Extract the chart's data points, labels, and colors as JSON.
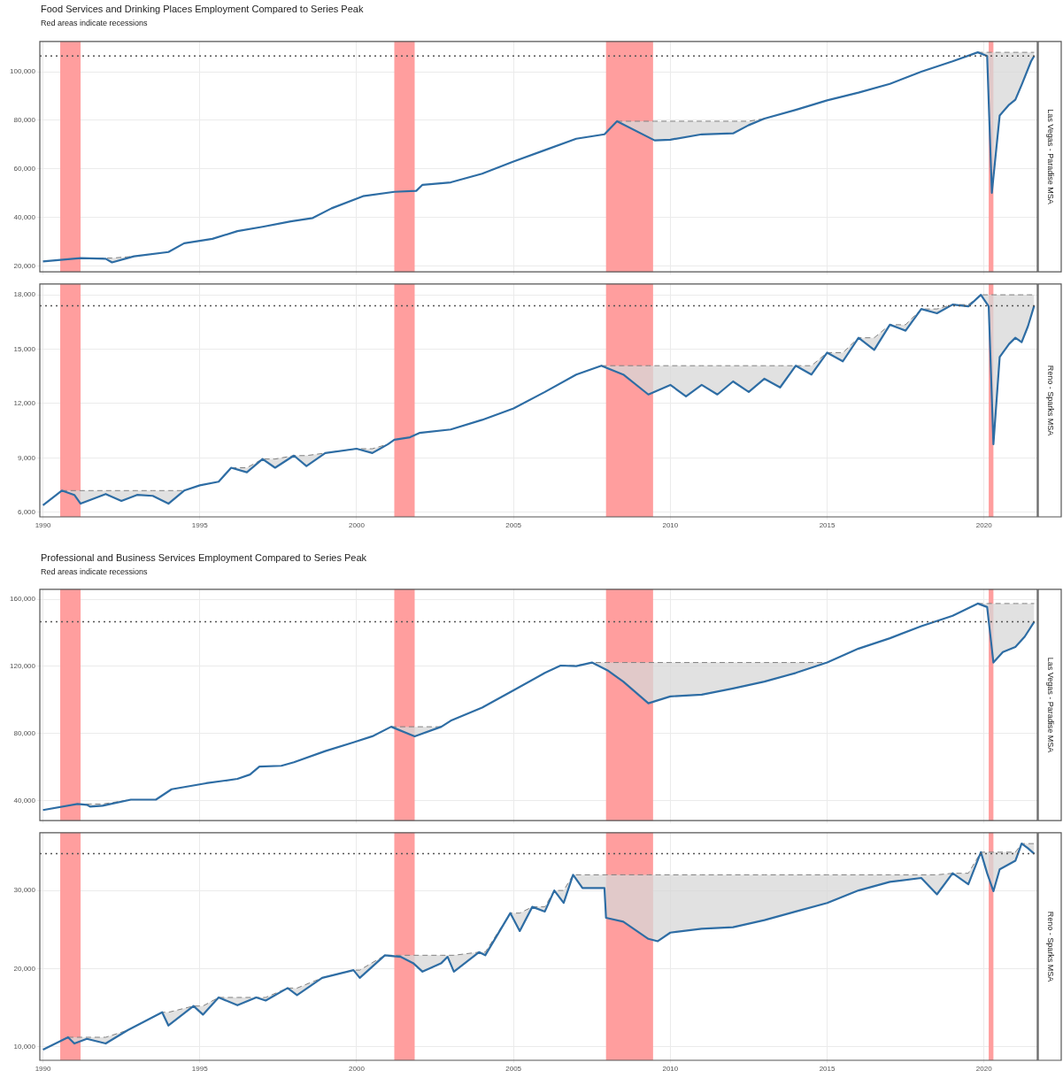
{
  "chart_data": [
    {
      "type": "line",
      "title": "Food Services and Drinking Places Employment Compared to Series Peak",
      "subtitle": "Red areas indicate recessions",
      "y2label": "Las Vegas - Paradise MSA",
      "xlim": [
        1989.9,
        2021.7
      ],
      "xticks": [
        1990,
        1995,
        2000,
        2005,
        2010,
        2015,
        2020
      ],
      "ylim": [
        17500,
        112500
      ],
      "yticks": [
        {
          "value": 20000,
          "label": "20,000"
        },
        {
          "value": 40000,
          "label": "40,000"
        },
        {
          "value": 60000,
          "label": "60,000"
        },
        {
          "value": 80000,
          "label": "80,000"
        },
        {
          "value": 100000,
          "label": "100,000"
        }
      ],
      "grid": true,
      "tick_labels": "y",
      "bands": [
        {
          "axis": "x",
          "from": 1990.55,
          "to": 1991.2,
          "color": "#ff9e9e"
        },
        {
          "axis": "x",
          "from": 2001.2,
          "to": 2001.85,
          "color": "#ff9e9e"
        },
        {
          "axis": "x",
          "from": 2007.95,
          "to": 2009.45,
          "color": "#ff9e9e"
        },
        {
          "axis": "x",
          "from": 2020.15,
          "to": 2020.3,
          "color": "#ff9e9e"
        }
      ],
      "ref_lines": [
        {
          "axis": "y",
          "value": 106500,
          "color": "#555555",
          "line_style": "dotted"
        }
      ],
      "series": [
        {
          "type": "line",
          "color": "#2e6da4",
          "x": [
            1990,
            1991.2,
            1992,
            1992.2,
            1992.9,
            1994,
            1994.5,
            1995.4,
            1996.2,
            1997,
            1997.9,
            1998.6,
            1999.2,
            2000.2,
            2001.2,
            2001.9,
            2002.1,
            2003,
            2004,
            2005,
            2006,
            2007,
            2007.9,
            2008.3,
            2009.5,
            2010,
            2011,
            2012,
            2012.5,
            2013,
            2014,
            2015,
            2016,
            2017,
            2018,
            2019,
            2019.8,
            2020.1,
            2020.25,
            2020.5,
            2020.8,
            2021,
            2021.2,
            2021.5,
            2021.6
          ],
          "values": [
            21800,
            23200,
            22900,
            21400,
            23900,
            25700,
            29300,
            31100,
            34300,
            36100,
            38300,
            39700,
            43700,
            48700,
            50500,
            50900,
            53400,
            54400,
            58000,
            63000,
            67700,
            72400,
            74200,
            79600,
            71700,
            72000,
            74200,
            74600,
            78000,
            80700,
            84300,
            88200,
            91400,
            95000,
            100000,
            104300,
            108000,
            106500,
            50100,
            82000,
            86400,
            88500,
            94600,
            104300,
            106500
          ],
          "lower": [
            null,
            23200,
            22900,
            21400,
            23900,
            null,
            null,
            null,
            null,
            null,
            null,
            null,
            null,
            null,
            null,
            null,
            null,
            null,
            null,
            null,
            null,
            null,
            null,
            79600,
            71700,
            72000,
            74200,
            74600,
            78000,
            80700,
            null,
            null,
            null,
            null,
            null,
            null,
            108000,
            106500,
            50100,
            82000,
            86400,
            88500,
            94600,
            104300,
            106500
          ],
          "upper": [
            null,
            23200,
            23200,
            23200,
            23900,
            null,
            null,
            null,
            null,
            null,
            null,
            null,
            null,
            null,
            null,
            null,
            null,
            null,
            null,
            null,
            null,
            null,
            null,
            79600,
            79600,
            79600,
            79600,
            79600,
            79600,
            80700,
            null,
            null,
            null,
            null,
            null,
            null,
            108000,
            108000,
            108000,
            108000,
            108000,
            108000,
            108000,
            108000,
            108000
          ]
        },
        {
          "type": "line",
          "color": "#808080",
          "line_style": "dashed",
          "x": [
            1991.2,
            1992,
            1992.2,
            1992.9,
            1994,
            2008.3,
            2009.5,
            2010,
            2011,
            2012,
            2012.5,
            2013,
            2014,
            2019.8,
            2020.1,
            2020.25,
            2020.5,
            2020.8,
            2021,
            2021.2,
            2021.5,
            2021.6
          ],
          "values": [
            23200,
            23200,
            23200,
            23900,
            null,
            79600,
            79600,
            79600,
            79600,
            79600,
            79600,
            80700,
            null,
            108000,
            108000,
            108000,
            108000,
            108000,
            108000,
            108000,
            108000,
            108000
          ]
        }
      ]
    },
    {
      "type": "line",
      "y2label": "Reno - Sparks MSA",
      "xlim": [
        1989.9,
        2021.7
      ],
      "xticks": [
        1990,
        1995,
        2000,
        2005,
        2010,
        2015,
        2020
      ],
      "ylim": [
        5750,
        18600
      ],
      "yticks": [
        {
          "value": 6000,
          "label": "6,000"
        },
        {
          "value": 9000,
          "label": "9,000"
        },
        {
          "value": 12000,
          "label": "12,000"
        },
        {
          "value": 15000,
          "label": "15,000"
        },
        {
          "value": 18000,
          "label": "18,000"
        }
      ],
      "grid": true,
      "bands": [
        {
          "axis": "x",
          "from": 1990.55,
          "to": 1991.2,
          "color": "#ff9e9e"
        },
        {
          "axis": "x",
          "from": 2001.2,
          "to": 2001.85,
          "color": "#ff9e9e"
        },
        {
          "axis": "x",
          "from": 2007.95,
          "to": 2009.45,
          "color": "#ff9e9e"
        },
        {
          "axis": "x",
          "from": 2020.15,
          "to": 2020.3,
          "color": "#ff9e9e"
        }
      ],
      "ref_lines": [
        {
          "axis": "y",
          "value": 17400,
          "color": "#555555",
          "line_style": "dotted"
        }
      ],
      "series": [
        {
          "type": "line",
          "color": "#2e6da4",
          "x": [
            1990,
            1990.6,
            1991,
            1991.2,
            1992,
            1992.5,
            1993,
            1993.5,
            1994,
            1994.5,
            1995,
            1995.6,
            1996,
            1996.5,
            1997,
            1997.4,
            1998,
            1998.4,
            1999,
            2000,
            2000.5,
            2001,
            2001.2,
            2001.7,
            2002,
            2003,
            2004,
            2005,
            2006,
            2007,
            2007.8,
            2008.5,
            2009.3,
            2010,
            2010.5,
            2011,
            2011.5,
            2012,
            2012.5,
            2013,
            2013.5,
            2014,
            2014.5,
            2015,
            2015.5,
            2016,
            2016.5,
            2017,
            2017.5,
            2018,
            2018.5,
            2019,
            2019.5,
            2019.9,
            2020.15,
            2020.3,
            2020.5,
            2020.8,
            2021,
            2021.2,
            2021.4,
            2021.6
          ],
          "values": [
            6390,
            7200,
            6960,
            6480,
            7010,
            6630,
            6960,
            6910,
            6480,
            7200,
            7490,
            7690,
            8460,
            8210,
            8940,
            8460,
            9130,
            8550,
            9270,
            9510,
            9270,
            9760,
            10000,
            10140,
            10380,
            10570,
            11100,
            11730,
            12640,
            13600,
            14090,
            13600,
            12500,
            13030,
            12400,
            13030,
            12500,
            13220,
            12640,
            13370,
            12890,
            14090,
            13600,
            14810,
            14330,
            15630,
            14960,
            16350,
            16020,
            17220,
            16980,
            17460,
            17360,
            18000,
            17360,
            9760,
            14570,
            15290,
            15630,
            15390,
            16260,
            17400
          ],
          "lower": [
            null,
            7200,
            6960,
            6480,
            7010,
            6630,
            6960,
            6910,
            6480,
            7200,
            null,
            null,
            8460,
            8210,
            8940,
            8460,
            9130,
            8550,
            9270,
            9510,
            9270,
            9760,
            null,
            null,
            null,
            null,
            null,
            null,
            null,
            null,
            14090,
            13600,
            12500,
            13030,
            12400,
            13030,
            12500,
            13220,
            12640,
            13370,
            12890,
            14090,
            13600,
            14810,
            14330,
            15630,
            14960,
            16350,
            16020,
            17220,
            16980,
            17460,
            17360,
            18000,
            17360,
            9760,
            14570,
            15290,
            15630,
            15390,
            16260,
            17400
          ],
          "upper": [
            null,
            7200,
            7200,
            7200,
            7200,
            7200,
            7200,
            7200,
            7200,
            7200,
            null,
            null,
            8460,
            8460,
            8940,
            8940,
            9130,
            9130,
            9270,
            9510,
            9510,
            9760,
            null,
            null,
            null,
            null,
            null,
            null,
            null,
            null,
            14090,
            14090,
            14090,
            14090,
            14090,
            14090,
            14090,
            14090,
            14090,
            14090,
            14090,
            14090,
            14090,
            14810,
            14810,
            15630,
            15630,
            16350,
            16350,
            17220,
            17220,
            17460,
            17460,
            18000,
            18000,
            18000,
            18000,
            18000,
            18000,
            18000,
            18000,
            18000
          ]
        },
        {
          "type": "line",
          "color": "#808080",
          "line_style": "dashed",
          "x": [
            1990.6,
            1991,
            1991.2,
            1992,
            1992.5,
            1993,
            1993.5,
            1994,
            1994.5,
            1995,
            1996,
            1996.5,
            1997,
            1997.4,
            1998,
            1998.4,
            1999,
            2000,
            2000.5,
            2001,
            2001.2,
            2007.8,
            2008.5,
            2009.3,
            2010,
            2010.5,
            2011,
            2011.5,
            2012,
            2012.5,
            2013,
            2013.5,
            2014,
            2014.5,
            2015,
            2015.5,
            2016,
            2016.5,
            2017,
            2017.5,
            2018,
            2018.5,
            2019,
            2019.5,
            2019.9,
            2020.15,
            2020.3,
            2020.5,
            2020.8,
            2021,
            2021.2,
            2021.4,
            2021.6
          ],
          "values": [
            7200,
            7200,
            7200,
            7200,
            7200,
            7200,
            7200,
            7200,
            7200,
            null,
            8460,
            8460,
            8940,
            8940,
            9130,
            9130,
            9270,
            9510,
            9510,
            9760,
            null,
            14090,
            14090,
            14090,
            14090,
            14090,
            14090,
            14090,
            14090,
            14090,
            14090,
            14090,
            14090,
            14090,
            14810,
            14810,
            15630,
            15630,
            16350,
            16350,
            17220,
            17220,
            17460,
            17460,
            18000,
            18000,
            18000,
            18000,
            18000,
            18000,
            18000,
            18000,
            18000
          ]
        }
      ]
    },
    {
      "type": "line",
      "title": "Professional and Business Services Employment Compared to Series Peak",
      "subtitle": "Red areas indicate recessions",
      "y2label": "Las Vegas - Paradise MSA",
      "xlim": [
        1989.9,
        2021.7
      ],
      "xticks": [
        1990,
        1995,
        2000,
        2005,
        2010,
        2015,
        2020
      ],
      "ylim": [
        28000,
        166000
      ],
      "yticks": [
        {
          "value": 40000,
          "label": "40,000"
        },
        {
          "value": 80000,
          "label": "80,000"
        },
        {
          "value": 120000,
          "label": "120,000"
        },
        {
          "value": 160000,
          "label": "160,000"
        }
      ],
      "grid": true,
      "tick_labels": "y",
      "bands": [
        {
          "axis": "x",
          "from": 1990.55,
          "to": 1991.2,
          "color": "#ff9e9e"
        },
        {
          "axis": "x",
          "from": 2001.2,
          "to": 2001.85,
          "color": "#ff9e9e"
        },
        {
          "axis": "x",
          "from": 2007.95,
          "to": 2009.45,
          "color": "#ff9e9e"
        },
        {
          "axis": "x",
          "from": 2020.15,
          "to": 2020.3,
          "color": "#ff9e9e"
        }
      ],
      "ref_lines": [
        {
          "axis": "y",
          "value": 146600,
          "color": "#555555",
          "line_style": "dotted"
        }
      ],
      "series": [
        {
          "type": "line",
          "color": "#2e6da4",
          "x": [
            1990,
            1991.1,
            1991.4,
            1991.5,
            1991.9,
            1992.8,
            1993.6,
            1994.1,
            1995.2,
            1996.2,
            1996.6,
            1996.9,
            1997.6,
            1998,
            1999,
            1999.9,
            2000.5,
            2001.1,
            2001.85,
            2002.7,
            2003,
            2004,
            2005,
            2006,
            2006.5,
            2007,
            2007.5,
            2008,
            2008.5,
            2009.3,
            2010,
            2011,
            2012,
            2013,
            2014,
            2015,
            2016,
            2017,
            2018,
            2019,
            2019.8,
            2020.1,
            2020.3,
            2020.6,
            2021,
            2021.3,
            2021.6
          ],
          "values": [
            34300,
            37900,
            37400,
            36400,
            36900,
            40500,
            40500,
            46700,
            50300,
            52900,
            55500,
            60200,
            60700,
            62800,
            69500,
            74700,
            78300,
            84000,
            78300,
            84000,
            87600,
            95400,
            105700,
            116100,
            120500,
            120200,
            122300,
            117600,
            110900,
            98000,
            102100,
            103100,
            106800,
            110900,
            116100,
            122300,
            130600,
            136800,
            144000,
            150200,
            157500,
            155400,
            122300,
            128500,
            131600,
            137800,
            146600
          ],
          "lower": [
            null,
            37900,
            37400,
            36400,
            36900,
            40500,
            null,
            null,
            null,
            null,
            null,
            null,
            null,
            null,
            null,
            null,
            null,
            84000,
            78300,
            84000,
            null,
            null,
            null,
            null,
            120500,
            120200,
            122300,
            117600,
            110900,
            98000,
            102100,
            103100,
            106800,
            110900,
            116100,
            122300,
            null,
            null,
            null,
            null,
            157500,
            155400,
            122300,
            128500,
            131600,
            137800,
            146600
          ],
          "upper": [
            null,
            37900,
            37900,
            37900,
            37900,
            40500,
            null,
            null,
            null,
            null,
            null,
            null,
            null,
            null,
            null,
            null,
            null,
            84000,
            84000,
            84000,
            null,
            null,
            null,
            null,
            120500,
            120500,
            122300,
            122300,
            122300,
            122300,
            122300,
            122300,
            122300,
            122300,
            122300,
            122300,
            null,
            null,
            null,
            null,
            157500,
            157500,
            157500,
            157500,
            157500,
            157500,
            157500
          ]
        },
        {
          "type": "line",
          "color": "#808080",
          "line_style": "dashed",
          "x": [
            1991.1,
            1991.4,
            1991.5,
            1991.9,
            1992.8,
            1993.6,
            2001.1,
            2001.85,
            2002.7,
            2003,
            2006.5,
            2007,
            2007.5,
            2008,
            2008.5,
            2009.3,
            2010,
            2011,
            2012,
            2013,
            2014,
            2015,
            2016,
            2019.8,
            2020.1,
            2020.3,
            2020.6,
            2021,
            2021.3,
            2021.6
          ],
          "values": [
            37900,
            37900,
            37900,
            37900,
            40500,
            null,
            84000,
            84000,
            84000,
            null,
            120500,
            120500,
            122300,
            122300,
            122300,
            122300,
            122300,
            122300,
            122300,
            122300,
            122300,
            122300,
            null,
            157500,
            157500,
            157500,
            157500,
            157500,
            157500,
            157500
          ]
        }
      ]
    },
    {
      "type": "line",
      "y2label": "Reno - Sparks MSA",
      "xlim": [
        1989.9,
        2021.7
      ],
      "xticks": [
        1990,
        1995,
        2000,
        2005,
        2010,
        2015,
        2020
      ],
      "ylim": [
        8250,
        37400
      ],
      "yticks": [
        {
          "value": 10000,
          "label": "10,000"
        },
        {
          "value": 20000,
          "label": "20,000"
        },
        {
          "value": 30000,
          "label": "30,000"
        }
      ],
      "grid": true,
      "bands": [
        {
          "axis": "x",
          "from": 1990.55,
          "to": 1991.2,
          "color": "#ff9e9e"
        },
        {
          "axis": "x",
          "from": 2001.2,
          "to": 2001.85,
          "color": "#ff9e9e"
        },
        {
          "axis": "x",
          "from": 2007.95,
          "to": 2009.45,
          "color": "#ff9e9e"
        },
        {
          "axis": "x",
          "from": 2020.15,
          "to": 2020.3,
          "color": "#ff9e9e"
        }
      ],
      "ref_lines": [
        {
          "axis": "y",
          "value": 34700,
          "color": "#555555",
          "line_style": "dotted"
        }
      ],
      "series": [
        {
          "type": "line",
          "color": "#2e6da4",
          "x": [
            1990,
            1990.8,
            1991,
            1991.4,
            1992,
            1992.7,
            1993.8,
            1994,
            1994.8,
            1995.1,
            1995.6,
            1996.2,
            1996.8,
            1997.1,
            1997.8,
            1998.1,
            1998.9,
            1999.9,
            2000.1,
            2000.9,
            2001.4,
            2001.8,
            2002.1,
            2002.7,
            2002.9,
            2003.1,
            2003.9,
            2004.1,
            2004.9,
            2005.2,
            2005.6,
            2006,
            2006.3,
            2006.6,
            2006.9,
            2007.2,
            2007.9,
            2007.95,
            2008.5,
            2009.3,
            2009.6,
            2010,
            2011,
            2012,
            2013,
            2014,
            2015,
            2016,
            2017,
            2018,
            2018.5,
            2019,
            2019.5,
            2019.9,
            2020.1,
            2020.3,
            2020.5,
            2021,
            2021.2,
            2021.4,
            2021.6
          ],
          "values": [
            9600,
            11200,
            10400,
            11000,
            10400,
            12100,
            14400,
            12700,
            15200,
            14100,
            16300,
            15300,
            16300,
            15900,
            17500,
            16600,
            18800,
            19800,
            18800,
            21700,
            21500,
            20700,
            19600,
            20700,
            21500,
            19600,
            22100,
            21700,
            27100,
            24800,
            27900,
            27300,
            30000,
            28400,
            32000,
            30300,
            30300,
            26500,
            26000,
            23800,
            23500,
            24600,
            25100,
            25300,
            26200,
            27300,
            28400,
            30000,
            31100,
            31600,
            29500,
            32200,
            30800,
            34900,
            32200,
            29900,
            32700,
            33800,
            36000,
            35400,
            34700
          ],
          "lower": [
            null,
            11200,
            10400,
            11000,
            10400,
            12100,
            14400,
            12700,
            15200,
            14100,
            16300,
            15300,
            16300,
            15900,
            17500,
            16600,
            18800,
            19800,
            18800,
            21700,
            21500,
            20700,
            19600,
            20700,
            21500,
            19600,
            22100,
            21700,
            27100,
            24800,
            27900,
            27300,
            30000,
            28400,
            32000,
            30300,
            30300,
            26500,
            26000,
            23800,
            23500,
            24600,
            25100,
            25300,
            26200,
            27300,
            28400,
            30000,
            31100,
            31600,
            29500,
            32200,
            30800,
            34900,
            32200,
            29900,
            32700,
            33800,
            36000,
            35400,
            34700
          ],
          "upper": [
            null,
            11200,
            11200,
            11200,
            11200,
            12100,
            14400,
            14400,
            15200,
            15200,
            16300,
            16300,
            16300,
            16300,
            17500,
            17500,
            18800,
            19800,
            19800,
            21700,
            21700,
            21700,
            21700,
            21700,
            21700,
            21700,
            22100,
            22100,
            27100,
            27100,
            27900,
            27900,
            30000,
            30000,
            32000,
            32000,
            32000,
            32000,
            32000,
            32000,
            32000,
            32000,
            32000,
            32000,
            32000,
            32000,
            32000,
            32000,
            32000,
            32000,
            32000,
            32200,
            32200,
            34900,
            34900,
            34900,
            34900,
            34900,
            36000,
            36000,
            36000
          ]
        },
        {
          "type": "line",
          "color": "#808080",
          "line_style": "dashed",
          "x": [
            1990.8,
            1991,
            1991.4,
            1992,
            1992.7,
            1993.8,
            1994,
            1994.8,
            1995.1,
            1995.6,
            1996.2,
            1996.8,
            1997.1,
            1997.8,
            1998.1,
            1998.9,
            1999.9,
            2000.1,
            2000.9,
            2001.4,
            2001.8,
            2002.1,
            2002.7,
            2002.9,
            2003.1,
            2003.9,
            2004.1,
            2004.9,
            2005.2,
            2005.6,
            2006,
            2006.3,
            2006.6,
            2006.9,
            2007.2,
            2007.9,
            2007.95,
            2008.5,
            2009.3,
            2009.6,
            2010,
            2011,
            2012,
            2013,
            2014,
            2015,
            2016,
            2017,
            2018,
            2018.5,
            2019,
            2019.5,
            2019.9,
            2020.1,
            2020.3,
            2020.5,
            2021,
            2021.2,
            2021.4,
            2021.6
          ],
          "values": [
            11200,
            11200,
            11200,
            11200,
            12100,
            14400,
            14400,
            15200,
            15200,
            16300,
            16300,
            16300,
            16300,
            17500,
            17500,
            18800,
            19800,
            19800,
            21700,
            21700,
            21700,
            21700,
            21700,
            21700,
            21700,
            22100,
            22100,
            27100,
            27100,
            27900,
            27900,
            30000,
            30000,
            32000,
            32000,
            32000,
            32000,
            32000,
            32000,
            32000,
            32000,
            32000,
            32000,
            32000,
            32000,
            32000,
            32000,
            32000,
            32000,
            32000,
            32200,
            32200,
            34900,
            34900,
            34900,
            34900,
            34900,
            36000,
            36000,
            36000
          ]
        }
      ]
    }
  ]
}
